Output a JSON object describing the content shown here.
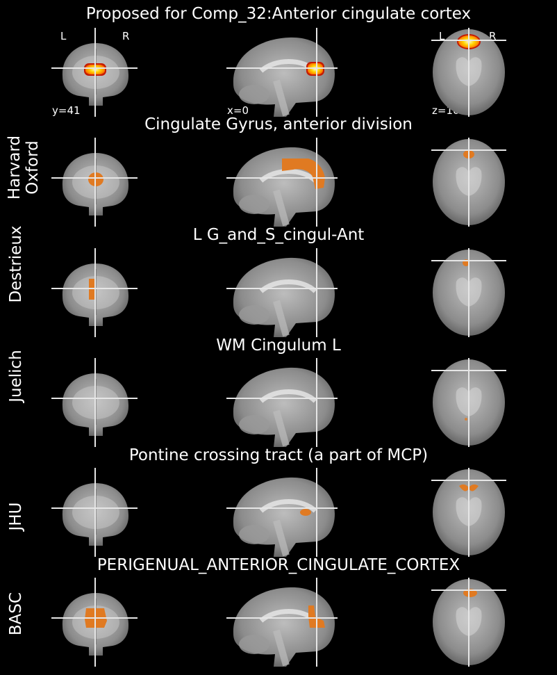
{
  "panels": [
    {
      "title": "Proposed for Comp_32:Anterior cingulate cortex",
      "atlas_label": "",
      "overlay": "heat",
      "coords": {
        "coronal": "y=41",
        "sagittal": "x=0",
        "axial": "z=10"
      },
      "orientation_left": "L",
      "orientation_right": "R"
    },
    {
      "title": "Cingulate Gyrus, anterior division",
      "atlas_label_lines": [
        "Harvard",
        "Oxford"
      ],
      "overlay": "orange"
    },
    {
      "title": "L G_and_S_cingul-Ant",
      "atlas_label_lines": [
        "Destrieux"
      ],
      "overlay": "orange"
    },
    {
      "title": "WM Cingulum L",
      "atlas_label_lines": [
        "Juelich"
      ],
      "overlay": "orange"
    },
    {
      "title": "Pontine crossing tract (a part of MCP)",
      "atlas_label_lines": [
        "JHU"
      ],
      "overlay": "orange"
    },
    {
      "title": "PERIGENUAL_ANTERIOR_CINGULATE_CORTEX",
      "atlas_label_lines": [
        "BASC"
      ],
      "overlay": "orange"
    }
  ],
  "colors": {
    "background": "#000000",
    "crosshair": "#e6e6e6",
    "overlay_orange": "#e07a22",
    "heat_core": "#fffbd0",
    "heat_mid": "#ffd400",
    "heat_edge": "#c41a00"
  }
}
